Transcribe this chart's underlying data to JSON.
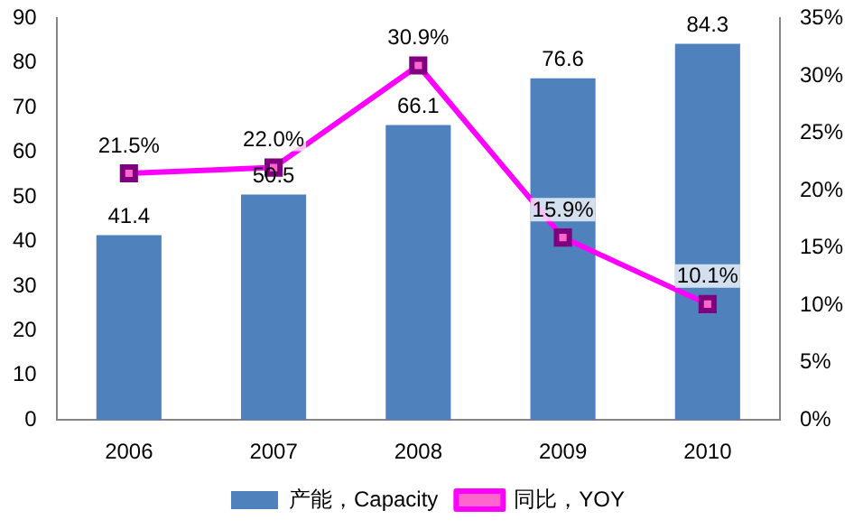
{
  "chart_data": {
    "type": "bar",
    "categories": [
      "2006",
      "2007",
      "2008",
      "2009",
      "2010"
    ],
    "series": [
      {
        "name": "产能，Capacity",
        "color": "#4f81bd",
        "values": [
          41.4,
          50.5,
          66.1,
          76.6,
          84.3
        ],
        "value_labels": [
          "41.4",
          "50.5",
          "66.1",
          "76.6",
          "84.3"
        ]
      },
      {
        "name": "同比，YOY",
        "type": "line",
        "axis": "y2",
        "color": "#ff00ff",
        "values": [
          21.5,
          22.0,
          30.9,
          15.9,
          10.1
        ],
        "value_labels": [
          "21.5%",
          "22.0%",
          "30.9%",
          "15.9%",
          "10.1%"
        ]
      }
    ],
    "ylim": [
      0,
      90
    ],
    "yticks": [
      0,
      10,
      20,
      30,
      40,
      50,
      60,
      70,
      80,
      90
    ],
    "y2lim": [
      0,
      35
    ],
    "y2ticks": [
      {
        "value": 0,
        "label": "0%"
      },
      {
        "value": 5,
        "label": "5%"
      },
      {
        "value": 10,
        "label": "10%"
      },
      {
        "value": 15,
        "label": "15%"
      },
      {
        "value": 20,
        "label": "20%"
      },
      {
        "value": 25,
        "label": "25%"
      },
      {
        "value": 30,
        "label": "30%"
      },
      {
        "value": 35,
        "label": "35%"
      }
    ],
    "grid": false,
    "legend": "bottom",
    "marker": "square",
    "line_style": "solid"
  }
}
